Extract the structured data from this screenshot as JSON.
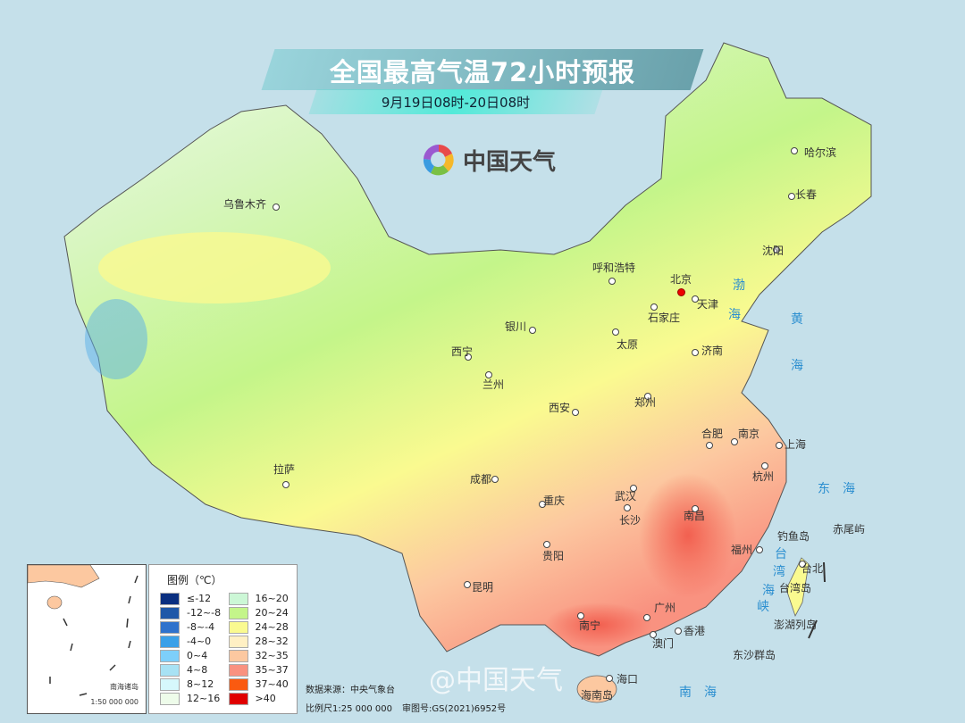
{
  "header": {
    "title": "全国最高气温72小时预报",
    "subtitle": "9月19日08时-20日08时",
    "logo_text": "中国天气"
  },
  "colors": {
    "sea": "#c5e0ea",
    "accent_banner": "#4fe8d8"
  },
  "cities": [
    {
      "name": "乌鲁木齐",
      "capital": false
    },
    {
      "name": "拉萨",
      "capital": false
    },
    {
      "name": "西宁",
      "capital": false
    },
    {
      "name": "兰州",
      "capital": false
    },
    {
      "name": "银川",
      "capital": false
    },
    {
      "name": "呼和浩特",
      "capital": false
    },
    {
      "name": "北京",
      "capital": true
    },
    {
      "name": "天津",
      "capital": false
    },
    {
      "name": "石家庄",
      "capital": false
    },
    {
      "name": "太原",
      "capital": false
    },
    {
      "name": "济南",
      "capital": false
    },
    {
      "name": "郑州",
      "capital": false
    },
    {
      "name": "西安",
      "capital": false
    },
    {
      "name": "成都",
      "capital": false
    },
    {
      "name": "重庆",
      "capital": false
    },
    {
      "name": "武汉",
      "capital": false
    },
    {
      "name": "长沙",
      "capital": false
    },
    {
      "name": "南昌",
      "capital": false
    },
    {
      "name": "合肥",
      "capital": false
    },
    {
      "name": "南京",
      "capital": false
    },
    {
      "name": "上海",
      "capital": false
    },
    {
      "name": "杭州",
      "capital": false
    },
    {
      "name": "福州",
      "capital": false
    },
    {
      "name": "贵阳",
      "capital": false
    },
    {
      "name": "昆明",
      "capital": false
    },
    {
      "name": "南宁",
      "capital": false
    },
    {
      "name": "广州",
      "capital": false
    },
    {
      "name": "香港",
      "capital": false
    },
    {
      "name": "澳门",
      "capital": false
    },
    {
      "name": "海口",
      "capital": false
    },
    {
      "name": "哈尔滨",
      "capital": false
    },
    {
      "name": "长春",
      "capital": false
    },
    {
      "name": "沈阳",
      "capital": false
    },
    {
      "name": "台北",
      "capital": false
    }
  ],
  "places": [
    "海南岛",
    "台湾岛",
    "钓鱼岛",
    "赤尾屿",
    "澎湖列岛",
    "东沙群岛"
  ],
  "seas": [
    "渤",
    "海",
    "黄",
    "海",
    "东　海",
    "南　海",
    "台",
    "湾",
    "海",
    "峡"
  ],
  "legend": {
    "title": "图例（℃）",
    "items": [
      {
        "label": "≤-12",
        "color": "#0a2f80"
      },
      {
        "label": "16~20",
        "color": "#ccf7d6"
      },
      {
        "label": "-12~-8",
        "color": "#1f58a8"
      },
      {
        "label": "20~24",
        "color": "#c4f58a"
      },
      {
        "label": "-8~-4",
        "color": "#2f72cc"
      },
      {
        "label": "24~28",
        "color": "#fafa90"
      },
      {
        "label": "-4~0",
        "color": "#3aa0e8"
      },
      {
        "label": "28~32",
        "color": "#fff0c4"
      },
      {
        "label": "0~4",
        "color": "#7dcffa"
      },
      {
        "label": "32~35",
        "color": "#fcc8a0"
      },
      {
        "label": "4~8",
        "color": "#a8e2f4"
      },
      {
        "label": "35~37",
        "color": "#f99280"
      },
      {
        "label": "8~12",
        "color": "#d6f8fc"
      },
      {
        "label": "37~40",
        "color": "#fa5a10"
      },
      {
        "label": "12~16",
        "color": "#eefcea"
      },
      {
        "label": ">40",
        "color": "#e00000"
      }
    ]
  },
  "inset": {
    "name": "南海诸岛",
    "scale": "1:50 000 000"
  },
  "footer": {
    "source": "数据来源：中央气象台",
    "scale": "比例尺1:25 000 000",
    "approval": "审图号:GS(2021)6952号"
  },
  "watermark": "@中国天气"
}
